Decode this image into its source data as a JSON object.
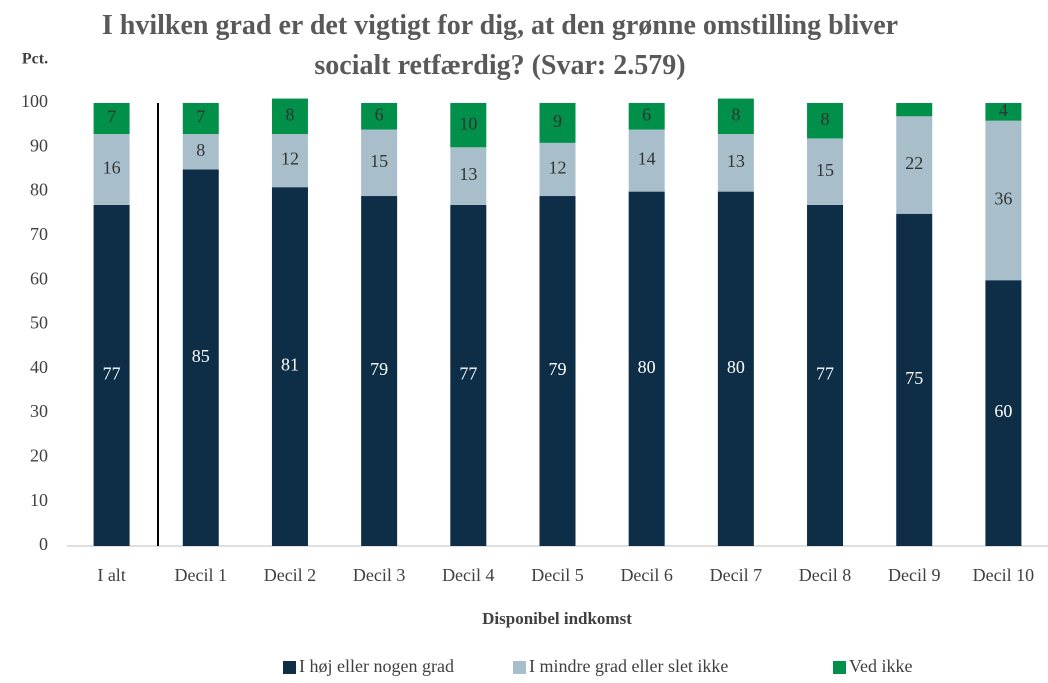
{
  "chart_data": {
    "type": "stacked_bar",
    "title": "I hvilken grad er det vigtigt for dig, at den grønne omstilling bliver socialt retfærdig? (Svar: 2.579)",
    "y_label": "Pct.",
    "x_label": "Disponibel indkomst",
    "categories": [
      "I alt",
      "Decil 1",
      "Decil 2",
      "Decil 3",
      "Decil 4",
      "Decil 5",
      "Decil 6",
      "Decil 7",
      "Decil 8",
      "Decil 9",
      "Decil 10"
    ],
    "series": [
      {
        "name": "I høj eller nogen grad",
        "color": "#0d2e46",
        "label_color": "#ffffff",
        "values": [
          77,
          85,
          81,
          79,
          77,
          79,
          80,
          80,
          77,
          75,
          60
        ]
      },
      {
        "name": "I mindre grad eller slet ikke",
        "color": "#a8bfcb",
        "label_color": "#333333",
        "values": [
          16,
          8,
          12,
          15,
          13,
          12,
          14,
          13,
          15,
          22,
          36
        ]
      },
      {
        "name": "Ved ikke",
        "color": "#00904a",
        "label_color": "#333333",
        "values": [
          7,
          7,
          8,
          6,
          10,
          9,
          6,
          8,
          8,
          3,
          4
        ],
        "value_labels": [
          "7",
          "7",
          "8",
          "6",
          "10",
          "9",
          "6",
          "8",
          "8",
          null,
          "4"
        ]
      }
    ],
    "ylim": [
      0,
      100
    ],
    "yticks": [
      0,
      10,
      20,
      30,
      40,
      50,
      60,
      70,
      80,
      90,
      100
    ],
    "grid": false,
    "legend": "bottom"
  }
}
